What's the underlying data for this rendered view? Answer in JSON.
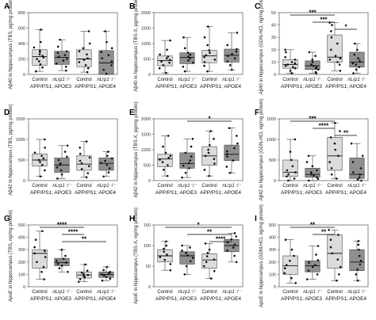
{
  "figure": {
    "colors": {
      "light_box": "#dcdcdc",
      "dark_box": "#8f8f8f",
      "point": "#111111",
      "axis": "#555555"
    },
    "categories": [
      "Control",
      "nLrp1⁻/⁻",
      "Control",
      "nLrp1⁻/⁻"
    ],
    "groups": [
      "APP/PS1; APOE3",
      "APP/PS1; APOE4"
    ]
  },
  "chart_data": [
    {
      "panel": "A",
      "type": "box",
      "ylabel": "Aβ40 in hippocampus (TBS, pg/mg protein)",
      "ylim": [
        0,
        800
      ],
      "yticks": [
        0,
        200,
        400,
        600,
        800
      ],
      "boxes": [
        {
          "q1": 120,
          "median": 230,
          "q3": 320,
          "whisker_low": 40,
          "whisker_high": 580,
          "points": [
            40,
            90,
            130,
            170,
            200,
            220,
            240,
            260,
            290,
            310,
            350,
            420,
            580
          ]
        },
        {
          "q1": 130,
          "median": 220,
          "q3": 300,
          "whisker_low": 50,
          "whisker_high": 450,
          "points": [
            50,
            100,
            140,
            180,
            200,
            230,
            250,
            280,
            300,
            360,
            450
          ]
        },
        {
          "q1": 100,
          "median": 200,
          "q3": 320,
          "whisker_low": 30,
          "whisker_high": 560,
          "points": [
            30,
            80,
            120,
            160,
            190,
            210,
            260,
            300,
            340,
            400,
            560
          ]
        },
        {
          "q1": 0,
          "median": 150,
          "q3": 310,
          "whisker_low": 0,
          "whisker_high": 560,
          "points": [
            10,
            60,
            120,
            170,
            210,
            250,
            290,
            340,
            420,
            560
          ]
        }
      ],
      "significance": []
    },
    {
      "panel": "B",
      "type": "box",
      "ylabel": "Aβ40 in hippocampus (TBS-X, pg/mg protein)",
      "ylim": [
        0,
        2000
      ],
      "yticks": [
        0,
        500,
        1000,
        1500,
        2000
      ],
      "boxes": [
        {
          "q1": 280,
          "median": 450,
          "q3": 600,
          "whisker_low": 50,
          "whisker_high": 1100,
          "points": [
            50,
            200,
            300,
            380,
            420,
            470,
            520,
            580,
            650,
            800,
            1100
          ]
        },
        {
          "q1": 350,
          "median": 550,
          "q3": 700,
          "whisker_low": 100,
          "whisker_high": 1200,
          "points": [
            100,
            250,
            380,
            450,
            520,
            580,
            640,
            700,
            850,
            1200
          ]
        },
        {
          "q1": 380,
          "median": 600,
          "q3": 780,
          "whisker_low": 100,
          "whisker_high": 1550,
          "points": [
            100,
            280,
            400,
            480,
            560,
            620,
            700,
            780,
            950,
            1200,
            1550
          ]
        },
        {
          "q1": 400,
          "median": 620,
          "q3": 820,
          "whisker_low": 150,
          "whisker_high": 1350,
          "points": [
            150,
            300,
            420,
            520,
            600,
            660,
            740,
            820,
            950,
            1350
          ]
        }
      ],
      "significance": []
    },
    {
      "panel": "C",
      "type": "box",
      "ylabel": "Aβ40 in hippocampus (GDN-HCl, ng/mg protein)",
      "ylim": [
        0,
        50
      ],
      "yticks": [
        0,
        10,
        20,
        30,
        40,
        50
      ],
      "boxes": [
        {
          "q1": 5,
          "median": 8,
          "q3": 12,
          "whisker_low": 1,
          "whisker_high": 20,
          "points": [
            1,
            3,
            5,
            6,
            7,
            8,
            9,
            10,
            12,
            14,
            18,
            20
          ]
        },
        {
          "q1": 4,
          "median": 7,
          "q3": 11,
          "whisker_low": 1,
          "whisker_high": 18,
          "points": [
            1,
            2,
            4,
            5,
            6,
            7,
            8,
            10,
            12,
            15,
            18
          ]
        },
        {
          "q1": 10,
          "median": 14,
          "q3": 32,
          "whisker_low": 3,
          "whisker_high": 42,
          "points": [
            3,
            8,
            10,
            12,
            13,
            15,
            20,
            25,
            30,
            35,
            40,
            42
          ]
        },
        {
          "q1": 6,
          "median": 10,
          "q3": 18,
          "whisker_low": 1,
          "whisker_high": 25,
          "points": [
            1,
            4,
            6,
            8,
            9,
            11,
            13,
            16,
            20,
            25
          ]
        }
      ],
      "significance": [
        {
          "from": 0,
          "to": 2,
          "label": "***"
        },
        {
          "from": 1,
          "to": 2,
          "label": "***"
        },
        {
          "from": 2,
          "to": 3,
          "label": "*"
        }
      ]
    },
    {
      "panel": "D",
      "type": "box",
      "ylabel": "Aβ42 in hippocampus (TBS, pg/mg protein)",
      "ylim": [
        0,
        1500
      ],
      "yticks": [
        0,
        500,
        1000,
        1500
      ],
      "boxes": [
        {
          "q1": 350,
          "median": 500,
          "q3": 650,
          "whisker_low": 100,
          "whisker_high": 1000,
          "points": [
            100,
            250,
            380,
            450,
            500,
            540,
            600,
            680,
            800,
            1000
          ]
        },
        {
          "q1": 200,
          "median": 380,
          "q3": 550,
          "whisker_low": 50,
          "whisker_high": 850,
          "points": [
            50,
            150,
            250,
            320,
            380,
            420,
            500,
            580,
            700,
            850
          ]
        },
        {
          "q1": 250,
          "median": 400,
          "q3": 600,
          "whisker_low": 80,
          "whisker_high": 950,
          "points": [
            80,
            180,
            280,
            350,
            420,
            480,
            560,
            650,
            800,
            950
          ]
        },
        {
          "q1": 250,
          "median": 420,
          "q3": 550,
          "whisker_low": 100,
          "whisker_high": 700,
          "points": [
            100,
            200,
            300,
            380,
            430,
            480,
            540,
            600,
            700
          ]
        }
      ],
      "significance": []
    },
    {
      "panel": "E",
      "type": "box",
      "ylabel": "Aβ42 in hippocampus (TBS-X, pg/mg protein)",
      "ylim": [
        0,
        2000
      ],
      "yticks": [
        0,
        500,
        1000,
        1500,
        2000
      ],
      "boxes": [
        {
          "q1": 450,
          "median": 700,
          "q3": 850,
          "whisker_low": 150,
          "whisker_high": 1450,
          "points": [
            150,
            350,
            500,
            600,
            680,
            740,
            800,
            900,
            1100,
            1450
          ]
        },
        {
          "q1": 400,
          "median": 550,
          "q3": 900,
          "whisker_low": 100,
          "whisker_high": 1350,
          "points": [
            100,
            250,
            400,
            480,
            560,
            650,
            780,
            900,
            1100,
            1350
          ]
        },
        {
          "q1": 500,
          "median": 800,
          "q3": 1100,
          "whisker_low": 150,
          "whisker_high": 1600,
          "points": [
            150,
            350,
            550,
            700,
            800,
            900,
            1000,
            1150,
            1350,
            1600
          ]
        },
        {
          "q1": 650,
          "median": 850,
          "q3": 1150,
          "whisker_low": 250,
          "whisker_high": 1700,
          "points": [
            250,
            450,
            650,
            780,
            860,
            950,
            1050,
            1200,
            1450,
            1700
          ]
        }
      ],
      "significance": [
        {
          "from": 1,
          "to": 3,
          "label": "*"
        }
      ]
    },
    {
      "panel": "F",
      "type": "box",
      "ylabel": "Aβ42 in hippocampus (GDN-HCl, ng/mg protein)",
      "ylim": [
        0,
        1500
      ],
      "yticks": [
        0,
        500,
        1000,
        1500
      ],
      "boxes": [
        {
          "q1": 100,
          "median": 200,
          "q3": 500,
          "whisker_low": 0,
          "whisker_high": 1000,
          "points": [
            0,
            50,
            100,
            150,
            200,
            250,
            350,
            500,
            700,
            1000
          ]
        },
        {
          "q1": 80,
          "median": 150,
          "q3": 300,
          "whisker_low": 0,
          "whisker_high": 600,
          "points": [
            0,
            40,
            80,
            120,
            150,
            200,
            250,
            350,
            450,
            600
          ]
        },
        {
          "q1": 250,
          "median": 600,
          "q3": 1050,
          "whisker_low": 50,
          "whisker_high": 1400,
          "points": [
            50,
            150,
            300,
            450,
            600,
            750,
            900,
            1050,
            1200,
            1400
          ]
        },
        {
          "q1": 50,
          "median": 150,
          "q3": 550,
          "whisker_low": 0,
          "whisker_high": 900,
          "points": [
            0,
            30,
            80,
            150,
            200,
            300,
            450,
            600,
            900
          ]
        }
      ],
      "significance": [
        {
          "from": 0,
          "to": 2,
          "label": "***"
        },
        {
          "from": 1,
          "to": 2,
          "label": "****"
        },
        {
          "from": 2,
          "to": 3,
          "label": "**"
        }
      ]
    },
    {
      "panel": "G",
      "type": "box",
      "ylabel": "ApoE in hippocampus (TBS, ng/mg protein)",
      "ylim": [
        0,
        500
      ],
      "yticks": [
        0,
        100,
        200,
        300,
        400,
        500
      ],
      "boxes": [
        {
          "q1": 150,
          "median": 270,
          "q3": 300,
          "whisker_low": 60,
          "whisker_high": 450,
          "points": [
            60,
            120,
            160,
            200,
            240,
            270,
            290,
            320,
            380,
            450
          ]
        },
        {
          "q1": 170,
          "median": 195,
          "q3": 230,
          "whisker_low": 120,
          "whisker_high": 300,
          "points": [
            120,
            150,
            170,
            185,
            195,
            210,
            225,
            250,
            300
          ]
        },
        {
          "q1": 70,
          "median": 95,
          "q3": 120,
          "whisker_low": 40,
          "whisker_high": 180,
          "points": [
            40,
            60,
            75,
            85,
            95,
            105,
            115,
            130,
            180
          ]
        },
        {
          "q1": 75,
          "median": 100,
          "q3": 120,
          "whisker_low": 50,
          "whisker_high": 160,
          "points": [
            50,
            65,
            80,
            90,
            100,
            110,
            120,
            135,
            160
          ]
        }
      ],
      "significance": [
        {
          "from": 0,
          "to": 2,
          "label": "****"
        },
        {
          "from": 1,
          "to": 2,
          "label": "****"
        },
        {
          "from": 1,
          "to": 3,
          "label": "**"
        }
      ]
    },
    {
      "panel": "H",
      "type": "box",
      "ylabel": "ApoE in hippocampus (TBS-X, ng/mg protein)",
      "ylim": [
        0,
        150
      ],
      "yticks": [
        0,
        50,
        100,
        150
      ],
      "boxes": [
        {
          "q1": 60,
          "median": 75,
          "q3": 90,
          "whisker_low": 40,
          "whisker_high": 110,
          "points": [
            40,
            55,
            65,
            72,
            78,
            85,
            92,
            100,
            110
          ]
        },
        {
          "q1": 55,
          "median": 75,
          "q3": 85,
          "whisker_low": 30,
          "whisker_high": 100,
          "points": [
            30,
            50,
            62,
            70,
            76,
            82,
            88,
            95,
            100
          ]
        },
        {
          "q1": 45,
          "median": 65,
          "q3": 80,
          "whisker_low": 20,
          "whisker_high": 105,
          "points": [
            20,
            38,
            50,
            60,
            66,
            74,
            82,
            90,
            105
          ]
        },
        {
          "q1": 85,
          "median": 100,
          "q3": 115,
          "whisker_low": 60,
          "whisker_high": 130,
          "points": [
            60,
            75,
            88,
            95,
            102,
            108,
            115,
            122,
            130
          ]
        }
      ],
      "significance": [
        {
          "from": 0,
          "to": 3,
          "label": "*"
        },
        {
          "from": 1,
          "to": 3,
          "label": "**"
        },
        {
          "from": 2,
          "to": 3,
          "label": "****"
        }
      ]
    },
    {
      "panel": "I",
      "type": "box",
      "ylabel": "ApoE in hippocampus (GDM-HCl, ng/mg protein)",
      "ylim": [
        0,
        500
      ],
      "yticks": [
        0,
        100,
        200,
        300,
        400,
        500
      ],
      "boxes": [
        {
          "q1": 100,
          "median": 170,
          "q3": 250,
          "whisker_low": 30,
          "whisker_high": 380,
          "points": [
            30,
            70,
            110,
            150,
            175,
            210,
            250,
            300,
            380
          ]
        },
        {
          "q1": 120,
          "median": 170,
          "q3": 210,
          "whisker_low": 60,
          "whisker_high": 330,
          "points": [
            60,
            100,
            130,
            160,
            175,
            195,
            215,
            260,
            330
          ]
        },
        {
          "q1": 150,
          "median": 270,
          "q3": 420,
          "whisker_low": 50,
          "whisker_high": 460,
          "points": [
            50,
            100,
            160,
            220,
            270,
            320,
            380,
            420,
            460
          ]
        },
        {
          "q1": 130,
          "median": 200,
          "q3": 300,
          "whisker_low": 50,
          "whisker_high": 370,
          "points": [
            50,
            100,
            140,
            180,
            210,
            250,
            300,
            340,
            370
          ]
        }
      ],
      "significance": [
        {
          "from": 0,
          "to": 2,
          "label": "**"
        },
        {
          "from": 1,
          "to": 2,
          "label": "**"
        }
      ]
    }
  ]
}
